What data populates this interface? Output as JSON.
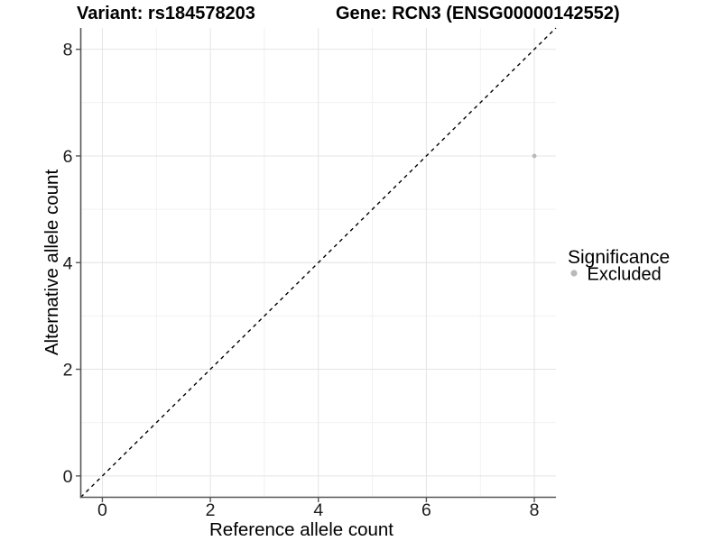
{
  "chart_data": {
    "type": "scatter",
    "title_left": "Variant: rs184578203",
    "title_right": "Gene: RCN3 (ENSG00000142552)",
    "xlabel": "Reference allele count",
    "ylabel": "Alternative allele count",
    "xlim": [
      -0.4,
      8.4
    ],
    "ylim": [
      -0.4,
      8.4
    ],
    "xticks": [
      0,
      2,
      4,
      6,
      8
    ],
    "yticks": [
      0,
      2,
      4,
      6,
      8
    ],
    "grid": {
      "major": true,
      "minor": true,
      "major_color": "#e4e4e4",
      "minor_color": "#f1f1f1"
    },
    "identity_line": {
      "type": "y=x",
      "style": "dashed",
      "color": "#000000"
    },
    "series": [
      {
        "name": "Excluded",
        "color": "#b9b9b9",
        "points": [
          {
            "x": 8,
            "y": 6
          }
        ]
      }
    ],
    "legend": {
      "title": "Significance",
      "position": "right",
      "items": [
        {
          "label": "Excluded",
          "color": "#b9b9b9"
        }
      ]
    },
    "axis_color": "#565656",
    "text_color": "#000000",
    "background_color": "#ffffff"
  }
}
